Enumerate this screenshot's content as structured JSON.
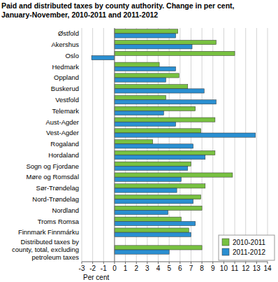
{
  "chart_data": {
    "type": "bar",
    "orientation": "horizontal",
    "title": "Paid and distributed taxes by county authority. Change in per cent, January-November, 2010-2011 and 2011-2012",
    "x_label": "Per cent",
    "categories": [
      "Østfold",
      "Akershus",
      "Oslo",
      "Hedmark",
      "Oppland",
      "Buskerud",
      "Vestfold",
      "Telemark",
      "Aust-Agder",
      "Vest-Agder",
      "Rogaland",
      "Hordaland",
      "Sogn og Fjordane",
      "Møre og Romsdal",
      "Sør-Trøndelag",
      "Nord-Trøndelag",
      "Nordland",
      "Troms Romsa",
      "Finnmark Finnmárku",
      "Distributed taxes by county, total, excluding petroleum taxes"
    ],
    "series": [
      {
        "name": "2010-2011",
        "color": "#78c141",
        "values": [
          5.8,
          9.3,
          11.0,
          4.1,
          5.9,
          6.7,
          4.7,
          7.4,
          9.2,
          7.9,
          3.5,
          9.2,
          7.0,
          10.8,
          8.3,
          7.9,
          8.0,
          6.1,
          6.8,
          8.0
        ]
      },
      {
        "name": "2011-2012",
        "color": "#2a8fd1",
        "values": [
          5.6,
          7.1,
          -2.1,
          5.6,
          4.7,
          8.2,
          9.3,
          4.5,
          5.6,
          12.9,
          7.2,
          8.3,
          6.7,
          6.1,
          5.7,
          7.2,
          4.9,
          7.4,
          7.0,
          5.0
        ]
      }
    ],
    "xlim": [
      -3,
      14
    ],
    "xticks": [
      -3,
      -2,
      -1,
      0,
      1,
      2,
      3,
      4,
      5,
      6,
      7,
      8,
      9,
      10,
      11,
      12,
      13,
      14
    ],
    "grid": true,
    "legend": "lower right"
  }
}
